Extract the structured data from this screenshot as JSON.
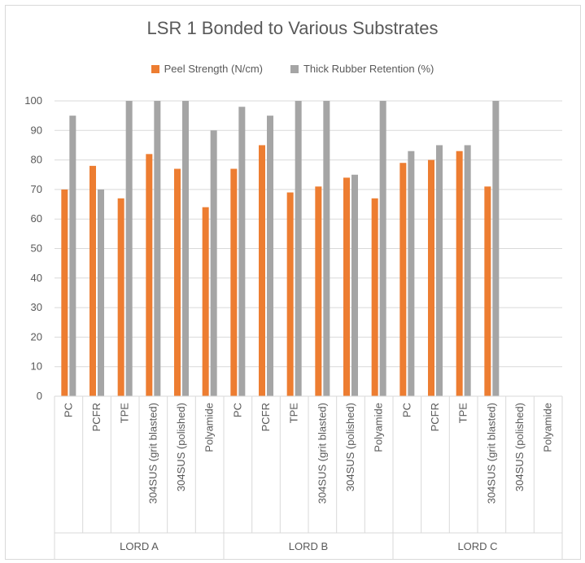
{
  "chart_data": {
    "type": "bar",
    "title": "LSR 1 Bonded to Various Substrates",
    "xlabel": "",
    "ylabel": "",
    "ylim": [
      0,
      100
    ],
    "yticks": [
      0,
      10,
      20,
      30,
      40,
      50,
      60,
      70,
      80,
      90,
      100
    ],
    "grid": true,
    "legend_position": "top",
    "groups": [
      {
        "name": "LORD A",
        "categories": [
          "PC",
          "PCFR",
          "TPE",
          "304SUS (grit blasted)",
          "304SUS (polished)",
          "Polyamide"
        ]
      },
      {
        "name": "LORD B",
        "categories": [
          "PC",
          "PCFR",
          "TPE",
          "304SUS (grit blasted)",
          "304SUS (polished)",
          "Polyamide"
        ]
      },
      {
        "name": "LORD C",
        "categories": [
          "PC",
          "PCFR",
          "TPE",
          "304SUS (grit blasted)",
          "304SUS (polished)",
          "Polyamide"
        ]
      }
    ],
    "series": [
      {
        "name": "Peel Strength (N/cm)",
        "color": "#ed7d31",
        "values": [
          70,
          78,
          67,
          82,
          77,
          64,
          77,
          85,
          69,
          71,
          74,
          67,
          79,
          80,
          83,
          71,
          null,
          null
        ]
      },
      {
        "name": "Thick Rubber Retention (%)",
        "color": "#a5a5a5",
        "values": [
          95,
          70,
          100,
          100,
          100,
          90,
          98,
          95,
          100,
          100,
          75,
          100,
          83,
          85,
          85,
          100,
          null,
          null
        ]
      }
    ]
  }
}
